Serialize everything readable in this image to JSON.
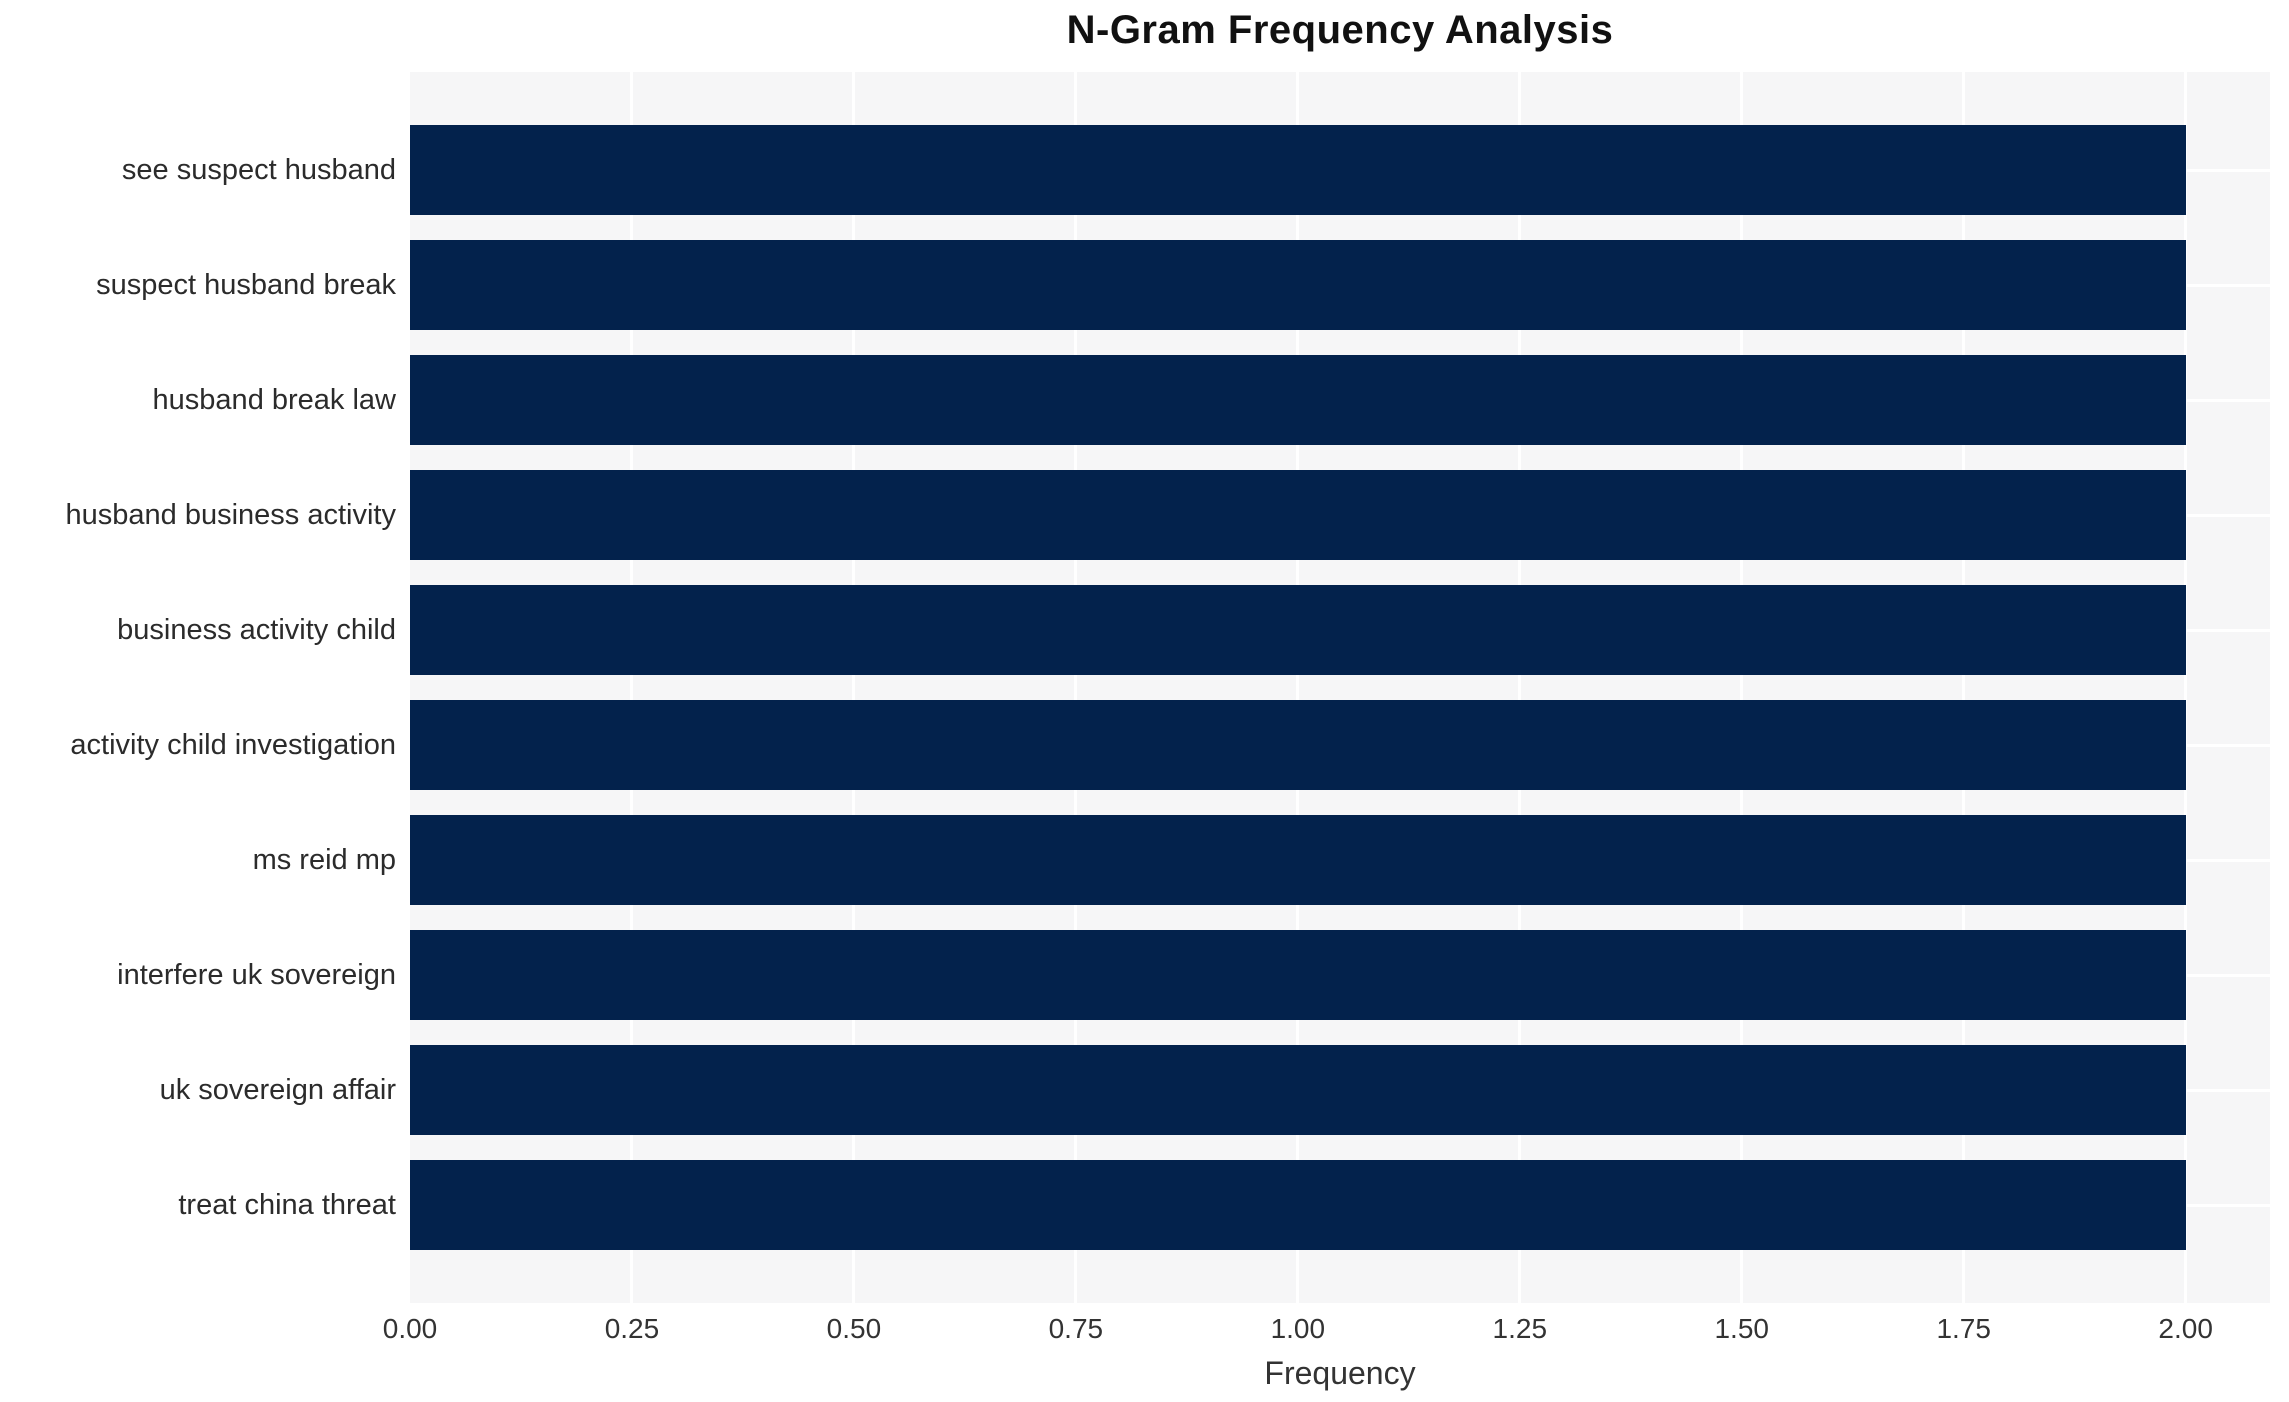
{
  "chart_data": {
    "type": "bar",
    "orientation": "horizontal",
    "title": "N-Gram Frequency Analysis",
    "xlabel": "Frequency",
    "ylabel": "",
    "categories": [
      "see suspect husband",
      "suspect husband break",
      "husband break law",
      "husband business activity",
      "business activity child",
      "activity child investigation",
      "ms reid mp",
      "interfere uk sovereign",
      "uk sovereign affair",
      "treat china threat"
    ],
    "values": [
      2,
      2,
      2,
      2,
      2,
      2,
      2,
      2,
      2,
      2
    ],
    "xlim": [
      0,
      2.095
    ],
    "xticks": [
      0,
      0.25,
      0.5,
      0.75,
      1.0,
      1.25,
      1.5,
      1.75,
      2.0
    ],
    "xtick_labels": [
      "0.00",
      "0.25",
      "0.50",
      "0.75",
      "1.00",
      "1.25",
      "1.50",
      "1.75",
      "2.00"
    ],
    "grid": true,
    "legend_position": "none",
    "colors": {
      "bar": "#03224c",
      "plot_bg": "#f6f6f7",
      "grid_line": "#ffffff",
      "title_text": "#111111",
      "axis_text": "#333333",
      "category_text": "#2b2b2b",
      "figure_bg": "#ffffff"
    }
  }
}
